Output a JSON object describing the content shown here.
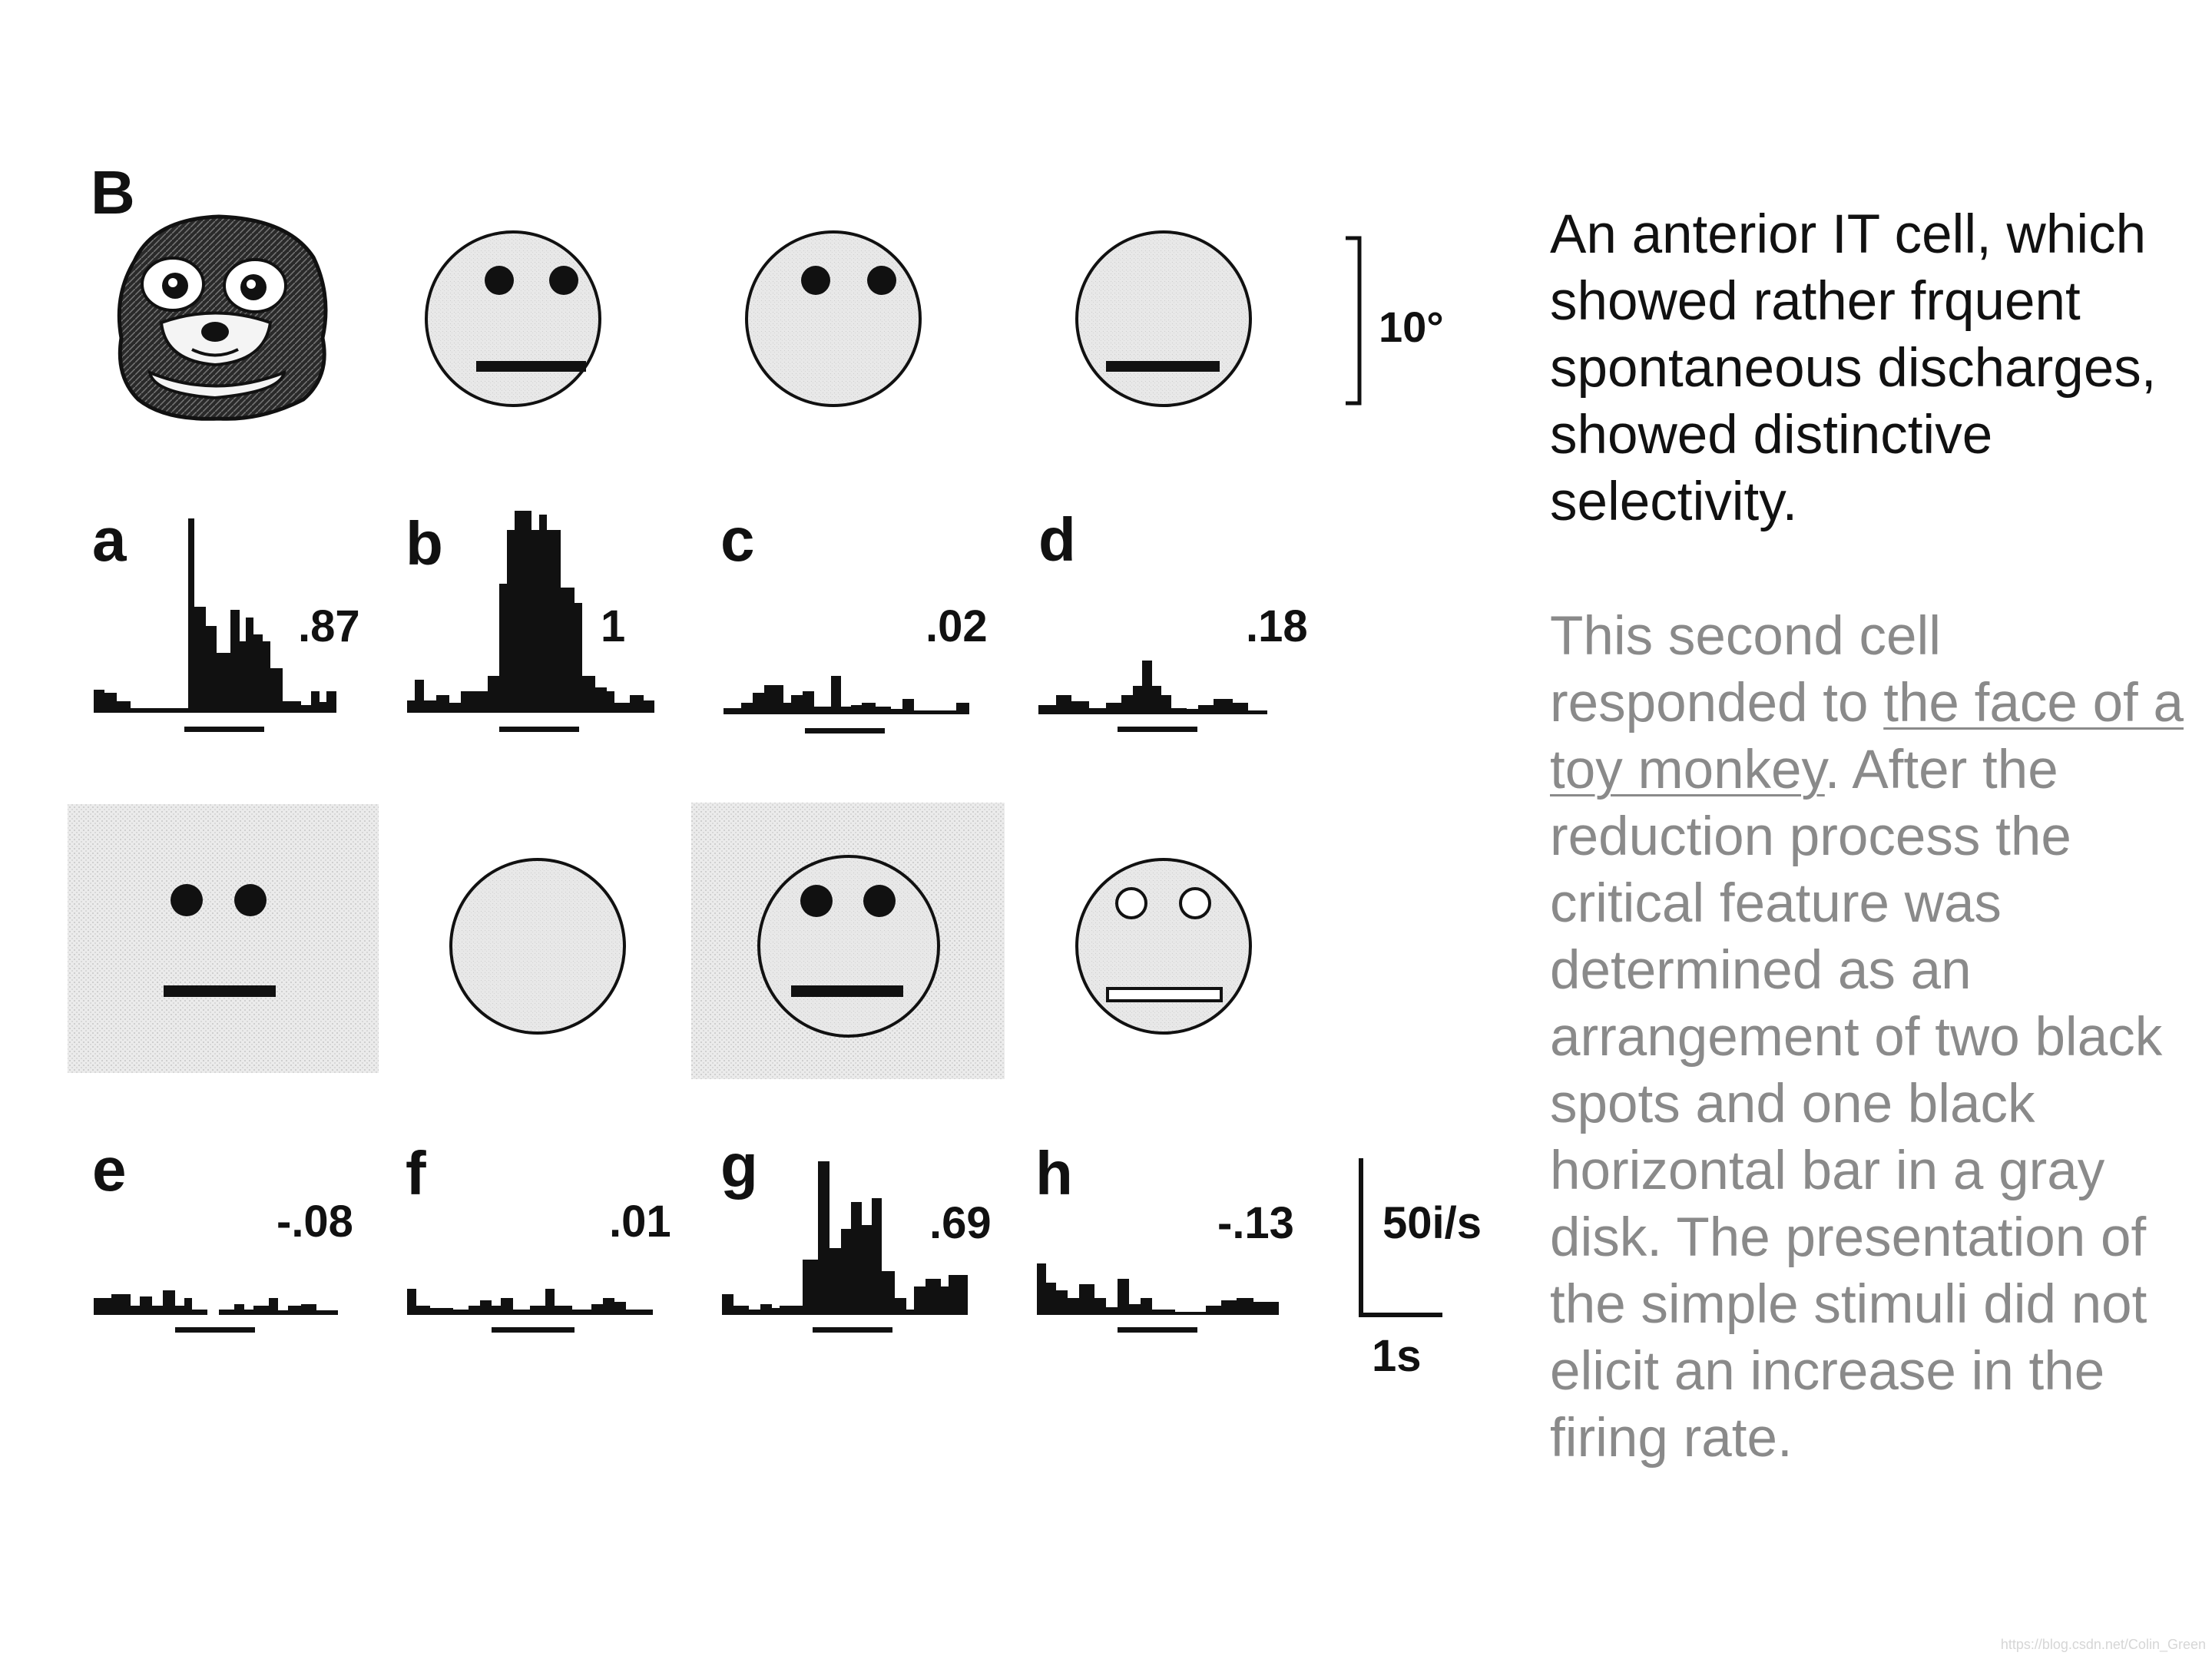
{
  "figure": {
    "panel_label": "B",
    "scale_degree": "10°",
    "scale_rate": "50i/s",
    "scale_time": "1s",
    "panels": [
      {
        "letter": "a",
        "value": ".87",
        "stimulus": "toy-monkey-face"
      },
      {
        "letter": "b",
        "value": "1",
        "stimulus": "gray-disk-two-spots-bar"
      },
      {
        "letter": "c",
        "value": ".02",
        "stimulus": "gray-disk-two-spots"
      },
      {
        "letter": "d",
        "value": ".18",
        "stimulus": "gray-disk-bar"
      },
      {
        "letter": "e",
        "value": "-.08",
        "stimulus": "spots-bar-on-gray-square"
      },
      {
        "letter": "f",
        "value": ".01",
        "stimulus": "gray-disk-empty"
      },
      {
        "letter": "g",
        "value": ".69",
        "stimulus": "disk-spots-bar-on-gray-square"
      },
      {
        "letter": "h",
        "value": "-.13",
        "stimulus": "disk-white-spots-white-bar"
      }
    ]
  },
  "text": {
    "black_paragraph": "An anterior IT cell, which showed rather frquent spontaneous discharges, showed distinctive selectivity.",
    "gray_before": "This second cell responded to ",
    "gray_link": "the face of a toy monkey",
    "gray_after": ". After the reduction process the critical feature was determined as an arrangement of two black spots and one black horizontal bar in a gray disk. The presentation of the simple stimuli did not elicit an increase in the firing rate."
  },
  "watermark": "https://blog.csdn.net/Colin_Green"
}
